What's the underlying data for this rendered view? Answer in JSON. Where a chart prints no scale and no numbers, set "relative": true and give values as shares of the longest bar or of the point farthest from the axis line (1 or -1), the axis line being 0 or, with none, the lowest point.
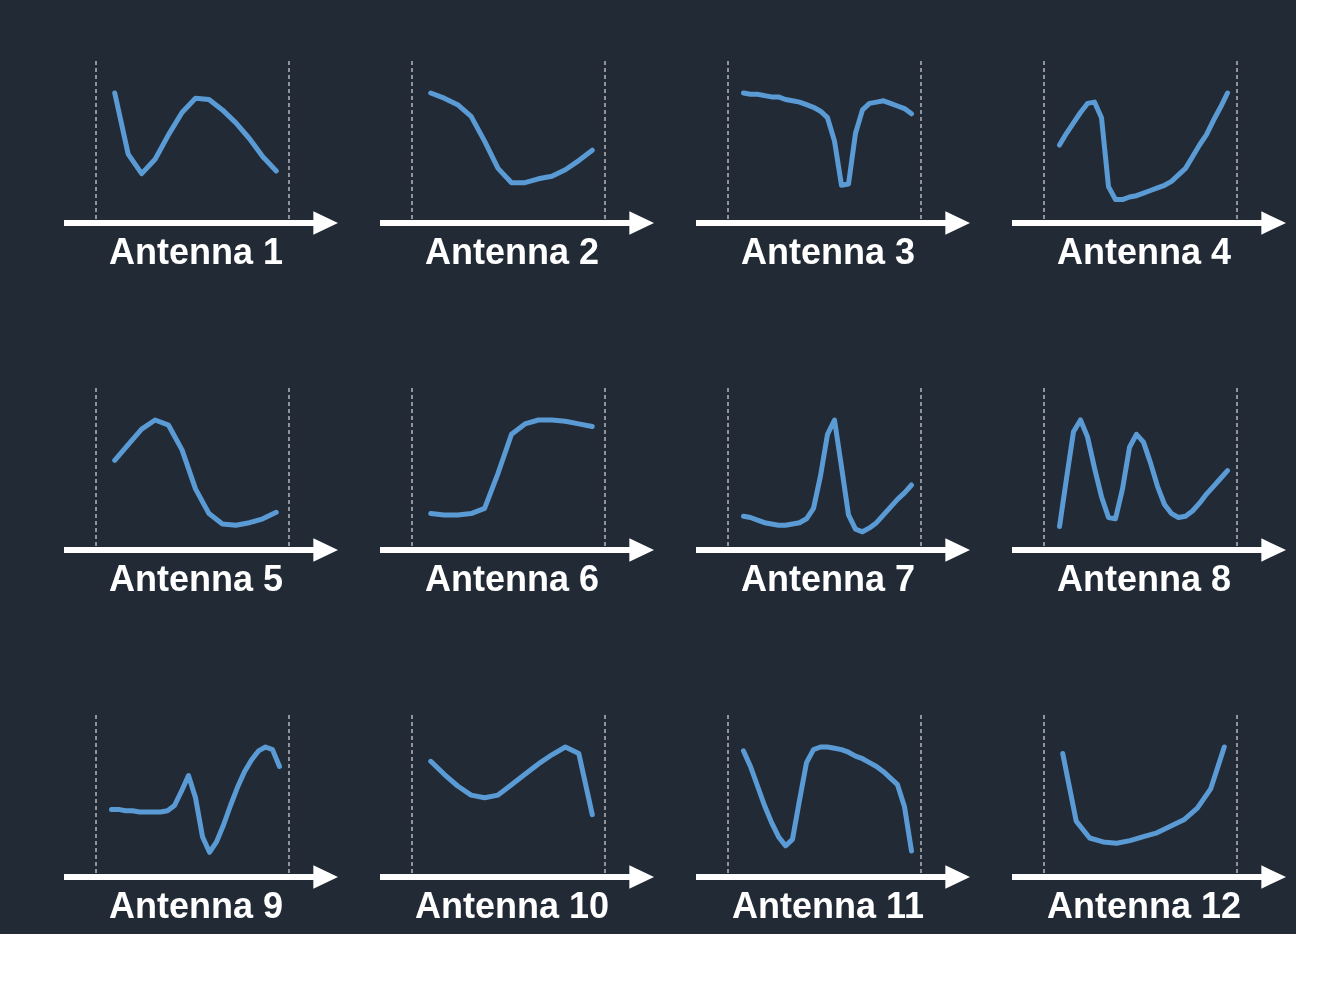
{
  "chart_data": [
    {
      "type": "line",
      "relative": true,
      "xlabel": "Antenna 1",
      "categories": [
        null,
        null,
        null,
        null,
        null,
        null,
        null,
        null,
        null,
        null,
        null,
        null,
        null
      ],
      "series": [
        {
          "color": "#5b9bd5",
          "values": [
            1,
            0.53,
            0.38,
            0.49,
            0.68,
            0.85,
            0.96,
            0.95,
            0.87,
            0.77,
            0.65,
            0.51,
            0.4
          ]
        }
      ]
    },
    {
      "type": "line",
      "relative": true,
      "xlabel": "Antenna 2",
      "categories": [
        null,
        null,
        null,
        null,
        null,
        null,
        null,
        null,
        null,
        null,
        null,
        null,
        null
      ],
      "series": [
        {
          "color": "#5b9bd5",
          "values": [
            1,
            0.96,
            0.91,
            0.82,
            0.63,
            0.42,
            0.31,
            0.31,
            0.34,
            0.36,
            0.41,
            0.48,
            0.56
          ]
        }
      ]
    },
    {
      "type": "line",
      "relative": true,
      "xlabel": "Antenna 3",
      "categories": [
        null,
        null,
        null,
        null,
        null,
        null,
        null,
        null,
        null,
        null,
        null,
        null,
        null,
        null,
        null,
        null,
        null,
        null,
        null,
        null,
        null,
        null,
        null,
        null,
        null
      ],
      "series": [
        {
          "color": "#5b9bd5",
          "values": [
            1,
            0.99,
            0.99,
            0.98,
            0.97,
            0.97,
            0.95,
            0.94,
            0.93,
            0.91,
            0.89,
            0.86,
            0.81,
            0.63,
            0.29,
            0.3,
            0.69,
            0.87,
            0.92,
            0.93,
            0.94,
            0.92,
            0.9,
            0.88,
            0.84
          ]
        }
      ]
    },
    {
      "type": "line",
      "relative": true,
      "xlabel": "Antenna 4",
      "categories": [
        null,
        null,
        null,
        null,
        null,
        null,
        null,
        null,
        null,
        null,
        null,
        null,
        null,
        null,
        null,
        null,
        null,
        null,
        null,
        null,
        null,
        null,
        null,
        null,
        null
      ],
      "series": [
        {
          "color": "#5b9bd5",
          "values": [
            0.6,
            0.69,
            0.77,
            0.85,
            0.92,
            0.93,
            0.81,
            0.28,
            0.18,
            0.18,
            0.2,
            0.21,
            0.23,
            0.25,
            0.27,
            0.29,
            0.32,
            0.37,
            0.42,
            0.51,
            0.6,
            0.68,
            0.79,
            0.89,
            1
          ]
        }
      ]
    },
    {
      "type": "line",
      "relative": true,
      "xlabel": "Antenna 5",
      "categories": [
        null,
        null,
        null,
        null,
        null,
        null,
        null,
        null,
        null,
        null,
        null,
        null,
        null
      ],
      "series": [
        {
          "color": "#5b9bd5",
          "values": [
            0.69,
            0.81,
            0.93,
            1,
            0.96,
            0.77,
            0.47,
            0.28,
            0.2,
            0.19,
            0.21,
            0.24,
            0.29
          ]
        }
      ]
    },
    {
      "type": "line",
      "relative": true,
      "xlabel": "Antenna 6",
      "categories": [
        null,
        null,
        null,
        null,
        null,
        null,
        null,
        null,
        null,
        null,
        null,
        null,
        null
      ],
      "series": [
        {
          "color": "#5b9bd5",
          "values": [
            0.28,
            0.27,
            0.27,
            0.28,
            0.32,
            0.59,
            0.89,
            0.97,
            1,
            1,
            0.99,
            0.97,
            0.95
          ]
        }
      ]
    },
    {
      "type": "line",
      "relative": true,
      "xlabel": "Antenna 7",
      "categories": [
        null,
        null,
        null,
        null,
        null,
        null,
        null,
        null,
        null,
        null,
        null,
        null,
        null,
        null,
        null,
        null,
        null,
        null,
        null,
        null,
        null,
        null,
        null,
        null,
        null
      ],
      "series": [
        {
          "color": "#5b9bd5",
          "values": [
            0.26,
            0.25,
            0.23,
            0.21,
            0.2,
            0.19,
            0.19,
            0.2,
            0.21,
            0.24,
            0.32,
            0.57,
            0.89,
            1,
            0.64,
            0.27,
            0.16,
            0.14,
            0.17,
            0.21,
            0.27,
            0.33,
            0.39,
            0.44,
            0.5
          ]
        }
      ]
    },
    {
      "type": "line",
      "relative": true,
      "xlabel": "Antenna 8",
      "categories": [
        null,
        null,
        null,
        null,
        null,
        null,
        null,
        null,
        null,
        null,
        null,
        null,
        null,
        null,
        null,
        null,
        null,
        null,
        null,
        null,
        null,
        null,
        null,
        null,
        null
      ],
      "series": [
        {
          "color": "#5b9bd5",
          "values": [
            0.18,
            0.55,
            0.91,
            1,
            0.87,
            0.63,
            0.41,
            0.25,
            0.24,
            0.47,
            0.79,
            0.89,
            0.83,
            0.67,
            0.49,
            0.35,
            0.28,
            0.25,
            0.26,
            0.3,
            0.36,
            0.43,
            0.49,
            0.55,
            0.61
          ]
        }
      ]
    },
    {
      "type": "line",
      "relative": true,
      "xlabel": "Antenna 9",
      "categories": [
        null,
        null,
        null,
        null,
        null,
        null,
        null,
        null,
        null,
        null,
        null,
        null,
        null,
        null,
        null,
        null,
        null,
        null,
        null,
        null,
        null,
        null,
        null,
        null,
        null
      ],
      "series": [
        {
          "color": "#5b9bd5",
          "values": [
            0.52,
            0.52,
            0.51,
            0.51,
            0.5,
            0.5,
            0.5,
            0.5,
            0.51,
            0.55,
            0.66,
            0.78,
            0.61,
            0.31,
            0.19,
            0.27,
            0.4,
            0.55,
            0.69,
            0.81,
            0.9,
            0.97,
            1,
            0.98,
            0.85
          ]
        }
      ]
    },
    {
      "type": "line",
      "relative": true,
      "xlabel": "Antenna 10",
      "categories": [
        null,
        null,
        null,
        null,
        null,
        null,
        null,
        null,
        null,
        null,
        null,
        null,
        null
      ],
      "series": [
        {
          "color": "#5b9bd5",
          "values": [
            0.89,
            0.79,
            0.7,
            0.63,
            0.61,
            0.63,
            0.71,
            0.79,
            0.87,
            0.94,
            1,
            0.95,
            0.48
          ]
        }
      ]
    },
    {
      "type": "line",
      "relative": true,
      "xlabel": "Antenna 11",
      "categories": [
        null,
        null,
        null,
        null,
        null,
        null,
        null,
        null,
        null,
        null,
        null,
        null,
        null,
        null,
        null,
        null,
        null,
        null,
        null,
        null,
        null,
        null,
        null,
        null,
        null
      ],
      "series": [
        {
          "color": "#5b9bd5",
          "values": [
            0.97,
            0.85,
            0.7,
            0.55,
            0.42,
            0.31,
            0.24,
            0.29,
            0.59,
            0.88,
            0.98,
            1,
            1,
            0.99,
            0.98,
            0.96,
            0.93,
            0.91,
            0.88,
            0.85,
            0.81,
            0.76,
            0.71,
            0.54,
            0.2
          ]
        }
      ]
    },
    {
      "type": "line",
      "relative": true,
      "xlabel": "Antenna 12",
      "categories": [
        null,
        null,
        null,
        null,
        null,
        null,
        null,
        null,
        null,
        null,
        null,
        null,
        null
      ],
      "series": [
        {
          "color": "#5b9bd5",
          "values": [
            0.95,
            0.43,
            0.3,
            0.27,
            0.26,
            0.28,
            0.31,
            0.34,
            0.39,
            0.44,
            0.53,
            0.68,
            1
          ]
        }
      ]
    }
  ]
}
